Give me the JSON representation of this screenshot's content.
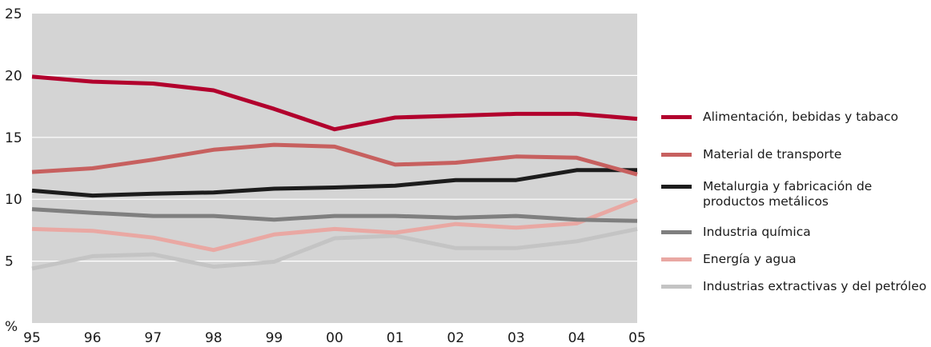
{
  "chart_data": {
    "type": "line",
    "ylabel": "%",
    "ylim": [
      0,
      25
    ],
    "yticks": [
      "25",
      "20",
      "15",
      "10",
      "5"
    ],
    "categories": [
      "95",
      "96",
      "97",
      "98",
      "99",
      "00",
      "01",
      "02",
      "03",
      "04",
      "05"
    ],
    "grid": true,
    "background": "#d4d4d4",
    "legend_position": "right",
    "series": [
      {
        "name": "Alimentación, bebidas y tabaco",
        "color": "#b2002d",
        "values": [
          19.9,
          19.5,
          19.35,
          18.8,
          17.3,
          15.65,
          16.6,
          16.75,
          16.9,
          16.9,
          16.5
        ]
      },
      {
        "name": "Material de transporte",
        "color": "#c7605f",
        "values": [
          12.2,
          12.5,
          13.2,
          14.0,
          14.4,
          14.25,
          12.8,
          12.95,
          13.45,
          13.35,
          12.0
        ]
      },
      {
        "name": "Metalurgia y fabricación de productos metálicos",
        "color": "#1c1c1c",
        "values": [
          10.7,
          10.3,
          10.45,
          10.55,
          10.85,
          10.95,
          11.1,
          11.55,
          11.55,
          12.35,
          12.35
        ]
      },
      {
        "name": "Industria química",
        "color": "#7f7f7f",
        "values": [
          9.2,
          8.9,
          8.65,
          8.65,
          8.35,
          8.65,
          8.65,
          8.5,
          8.65,
          8.35,
          8.25
        ]
      },
      {
        "name": "Energía y agua",
        "color": "#e9a8a3",
        "values": [
          7.6,
          7.45,
          6.9,
          5.9,
          7.15,
          7.6,
          7.3,
          8.0,
          7.7,
          8.05,
          9.95
        ]
      },
      {
        "name": "Industrias extractivas y del petróleo",
        "color": "#c4c4c4",
        "values": [
          4.4,
          5.4,
          5.55,
          4.55,
          4.95,
          6.85,
          7.05,
          6.05,
          6.05,
          6.6,
          7.6
        ]
      }
    ]
  }
}
